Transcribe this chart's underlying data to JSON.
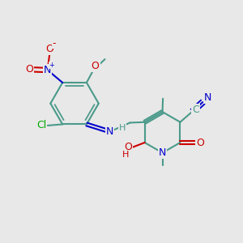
{
  "bg_color": "#e8e8e8",
  "bond_color": "#4a9a8a",
  "bond_width": 1.5,
  "atom_colors": {
    "N": "#0000cc",
    "O": "#cc0000",
    "Cl": "#00aa00",
    "C": "#4a9a8a"
  },
  "font_size": 9
}
